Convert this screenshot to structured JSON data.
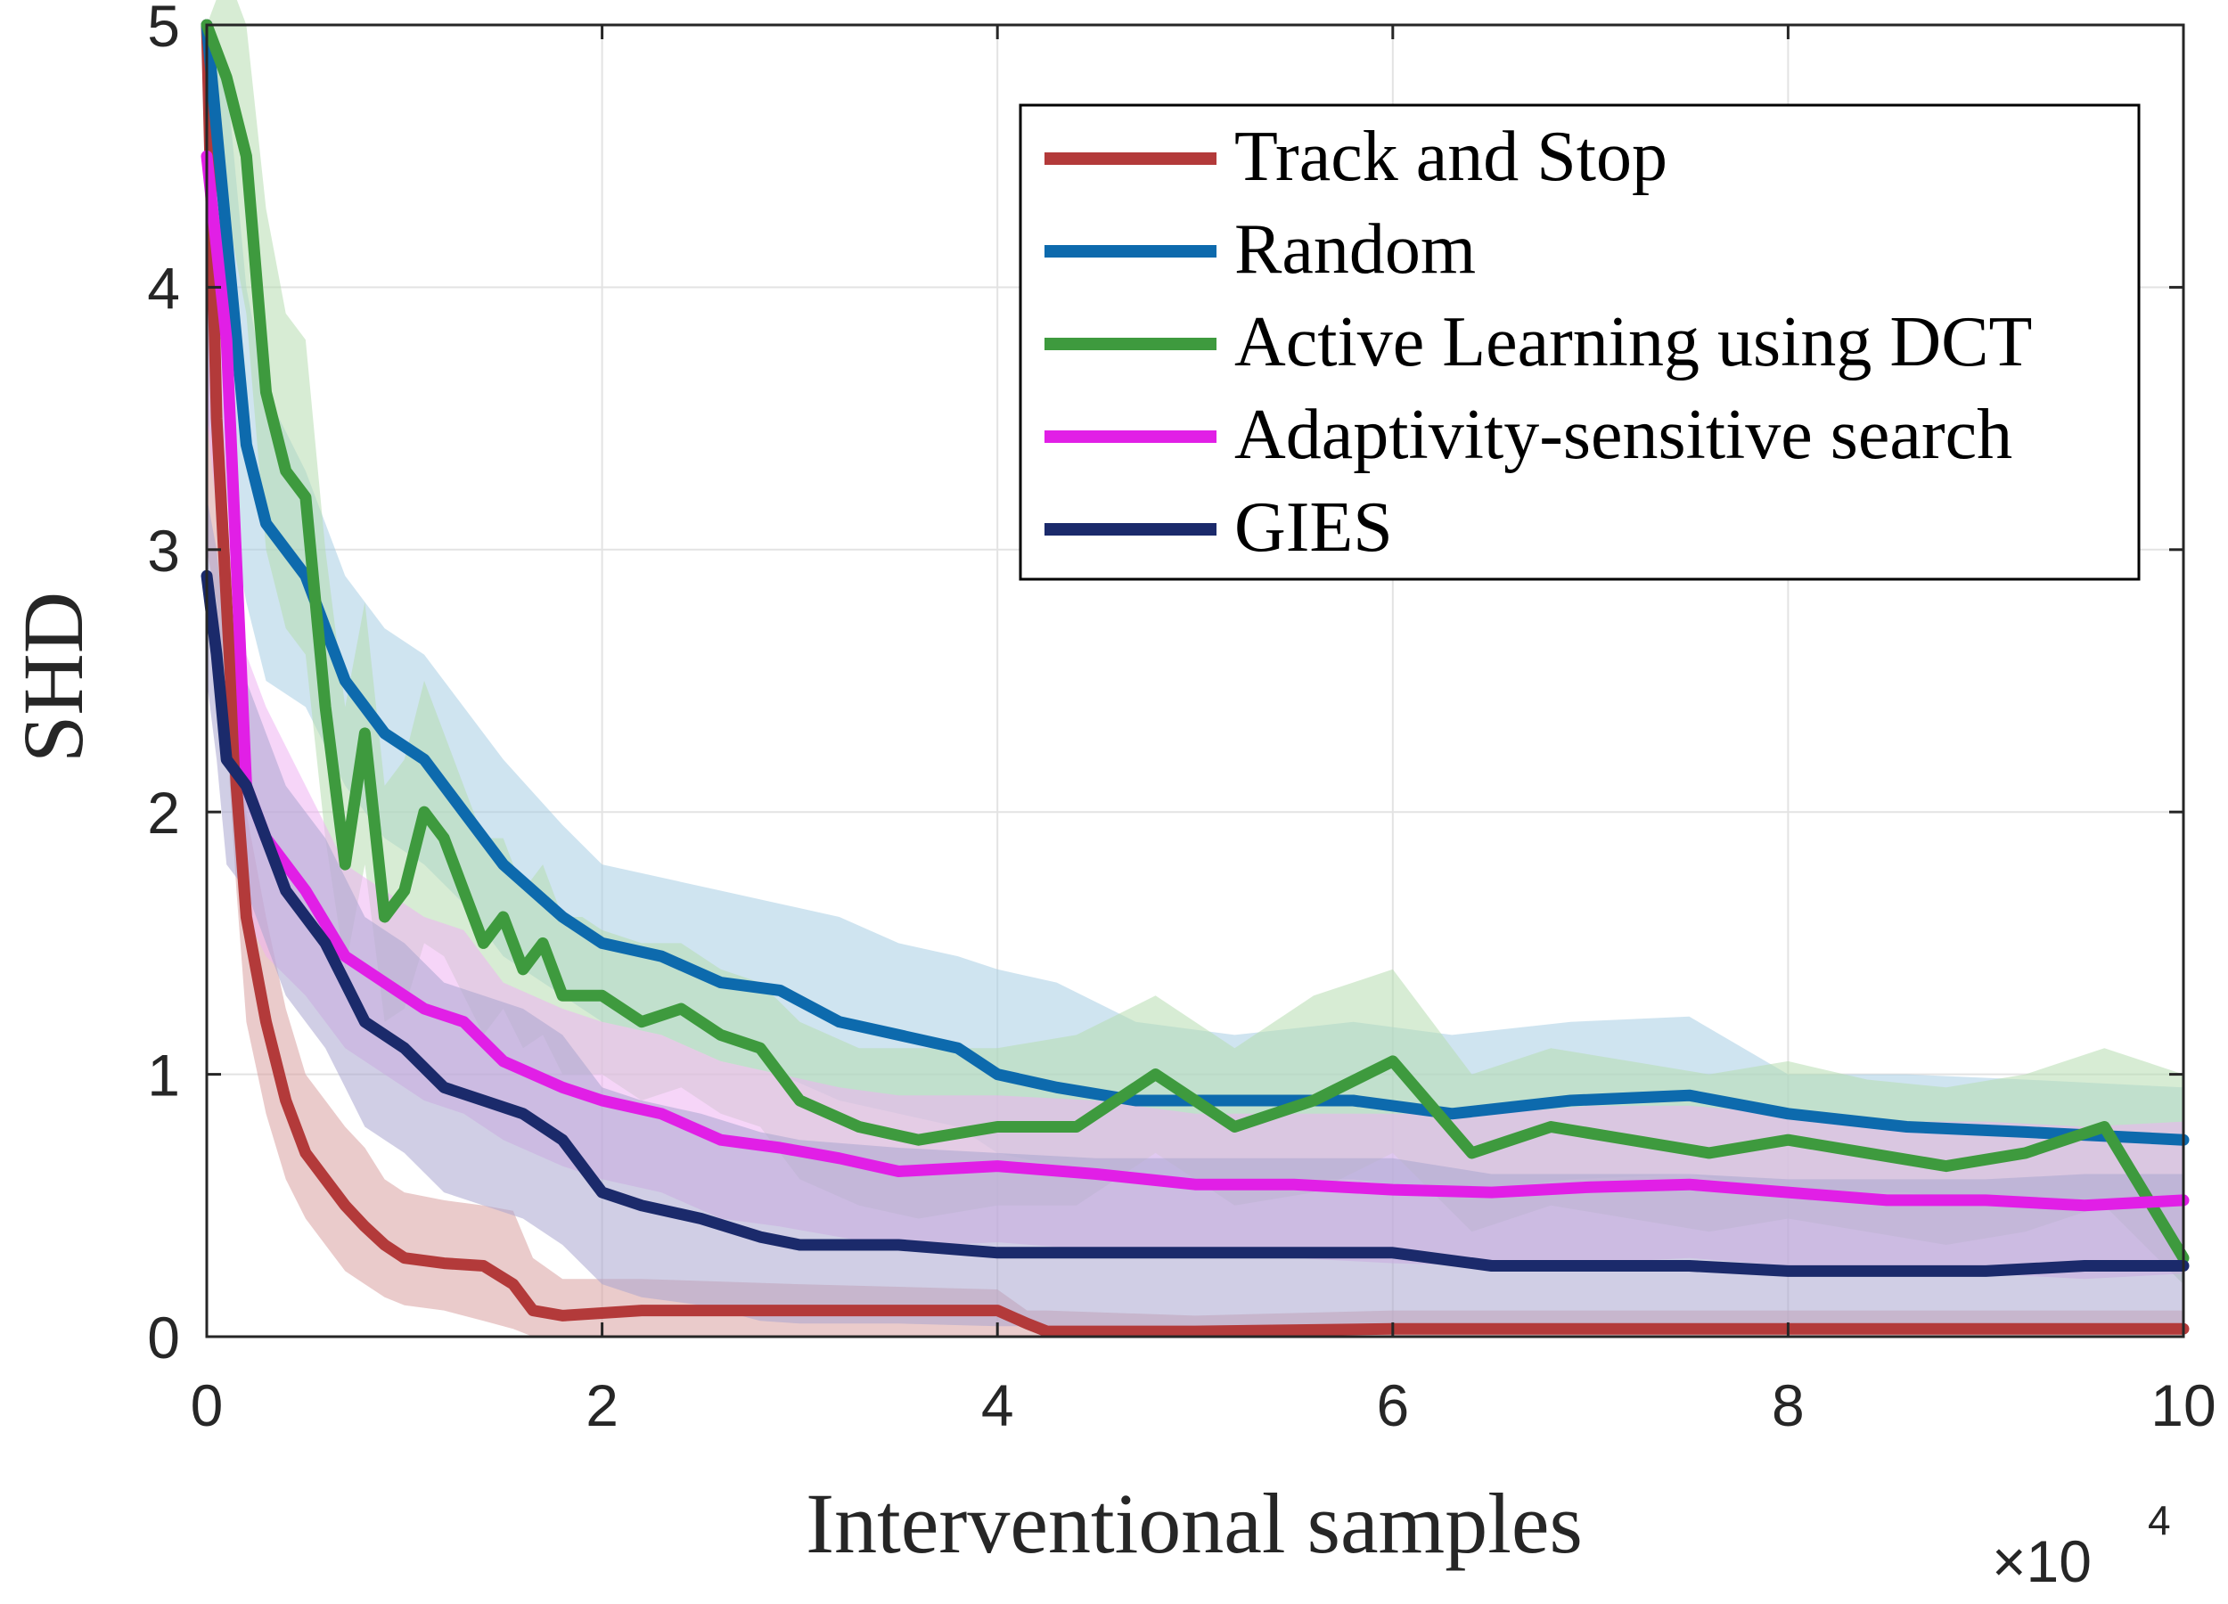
{
  "chart_data": {
    "type": "line",
    "title": "",
    "xlabel": "Interventional samples",
    "ylabel": "SHD",
    "x_exponent_base": "×10",
    "x_exponent_power": "4",
    "xlim": [
      0,
      10
    ],
    "ylim": [
      0,
      5
    ],
    "xticks": [
      "0",
      "2",
      "4",
      "6",
      "8",
      "10"
    ],
    "yticks": [
      "0",
      "1",
      "2",
      "3",
      "4",
      "5"
    ],
    "grid": true,
    "legend_position": "top-right",
    "series": [
      {
        "name": "Track and Stop",
        "color": "#b33a3a",
        "band_color": "#d9a0a0",
        "x": [
          0,
          0.05,
          0.1,
          0.15,
          0.2,
          0.3,
          0.4,
          0.5,
          0.6,
          0.7,
          0.8,
          0.9,
          1.0,
          1.2,
          1.4,
          1.55,
          1.65,
          1.8,
          2.2,
          3.0,
          4.0,
          4.15,
          4.25,
          5.0,
          6.0,
          8.0,
          10.0
        ],
        "y": [
          5,
          3.5,
          2.8,
          2.1,
          1.6,
          1.2,
          0.9,
          0.7,
          0.6,
          0.5,
          0.42,
          0.35,
          0.3,
          0.28,
          0.27,
          0.2,
          0.1,
          0.08,
          0.1,
          0.1,
          0.1,
          0.05,
          0.02,
          0.02,
          0.03,
          0.03,
          0.03
        ],
        "upper": [
          5,
          4.0,
          3.2,
          2.5,
          2.0,
          1.6,
          1.25,
          1.0,
          0.9,
          0.8,
          0.72,
          0.6,
          0.55,
          0.52,
          0.5,
          0.48,
          0.3,
          0.22,
          0.22,
          0.2,
          0.18,
          0.1,
          0.1,
          0.08,
          0.1,
          0.1,
          0.1
        ],
        "lower": [
          3,
          2.8,
          2.3,
          1.7,
          1.2,
          0.85,
          0.6,
          0.45,
          0.35,
          0.25,
          0.2,
          0.15,
          0.12,
          0.1,
          0.06,
          0.03,
          0.0,
          0.0,
          0.0,
          0.0,
          0.0,
          0.0,
          0.0,
          0.0,
          0.0,
          0.0,
          0.0
        ]
      },
      {
        "name": "Random",
        "color": "#0d6aad",
        "band_color": "#a7cde3",
        "x": [
          0,
          0.1,
          0.2,
          0.3,
          0.5,
          0.7,
          0.9,
          1.1,
          1.3,
          1.5,
          1.8,
          2.0,
          2.3,
          2.6,
          2.9,
          3.2,
          3.5,
          3.8,
          4.0,
          4.3,
          4.7,
          5.2,
          5.8,
          6.3,
          6.9,
          7.5,
          8.0,
          8.6,
          9.2,
          10.0
        ],
        "y": [
          5,
          4.2,
          3.4,
          3.1,
          2.9,
          2.5,
          2.3,
          2.2,
          2.0,
          1.8,
          1.6,
          1.5,
          1.45,
          1.35,
          1.32,
          1.2,
          1.15,
          1.1,
          1.0,
          0.95,
          0.9,
          0.9,
          0.9,
          0.85,
          0.9,
          0.92,
          0.85,
          0.8,
          0.78,
          0.75
        ],
        "upper": [
          5,
          4.8,
          4.0,
          3.6,
          3.3,
          2.9,
          2.7,
          2.6,
          2.4,
          2.2,
          1.95,
          1.8,
          1.75,
          1.7,
          1.65,
          1.6,
          1.5,
          1.45,
          1.4,
          1.35,
          1.2,
          1.15,
          1.2,
          1.15,
          1.2,
          1.22,
          1.0,
          1.0,
          0.98,
          0.95
        ],
        "lower": [
          3.5,
          3.2,
          2.8,
          2.5,
          2.4,
          2.1,
          1.9,
          1.8,
          1.65,
          1.45,
          1.3,
          1.2,
          1.15,
          1.05,
          1.0,
          0.9,
          0.85,
          0.8,
          0.7,
          0.65,
          0.6,
          0.6,
          0.6,
          0.55,
          0.6,
          0.62,
          0.55,
          0.55,
          0.5,
          0.5
        ]
      },
      {
        "name": "Active Learning using DCT",
        "color": "#3e9a3e",
        "band_color": "#b6dcb0",
        "x": [
          0,
          0.1,
          0.2,
          0.3,
          0.4,
          0.5,
          0.6,
          0.7,
          0.8,
          0.9,
          1.0,
          1.1,
          1.2,
          1.3,
          1.4,
          1.5,
          1.6,
          1.7,
          1.8,
          1.9,
          2.0,
          2.2,
          2.4,
          2.6,
          2.8,
          3.0,
          3.3,
          3.6,
          4.0,
          4.4,
          4.8,
          5.2,
          5.6,
          6.0,
          6.4,
          6.8,
          7.2,
          7.6,
          8.0,
          8.4,
          8.8,
          9.2,
          9.6,
          10.0
        ],
        "y": [
          5,
          4.8,
          4.5,
          3.6,
          3.3,
          3.2,
          2.4,
          1.8,
          2.3,
          1.6,
          1.7,
          2.0,
          1.9,
          1.7,
          1.5,
          1.6,
          1.4,
          1.5,
          1.3,
          1.3,
          1.3,
          1.2,
          1.25,
          1.15,
          1.1,
          0.9,
          0.8,
          0.75,
          0.8,
          0.8,
          1.0,
          0.8,
          0.9,
          1.05,
          0.7,
          0.8,
          0.75,
          0.7,
          0.75,
          0.7,
          0.65,
          0.7,
          0.8,
          0.3
        ],
        "upper": [
          5,
          5.2,
          5.0,
          4.3,
          3.9,
          3.8,
          3.0,
          2.4,
          2.8,
          2.1,
          2.2,
          2.5,
          2.3,
          2.1,
          1.9,
          1.9,
          1.7,
          1.8,
          1.6,
          1.6,
          1.55,
          1.5,
          1.5,
          1.4,
          1.35,
          1.2,
          1.1,
          1.1,
          1.1,
          1.15,
          1.3,
          1.1,
          1.3,
          1.4,
          1.0,
          1.1,
          1.05,
          1.0,
          1.05,
          0.98,
          0.95,
          1.0,
          1.1,
          1.0
        ],
        "lower": [
          4.5,
          4.3,
          3.9,
          3.0,
          2.7,
          2.6,
          1.9,
          1.4,
          1.8,
          1.2,
          1.25,
          1.5,
          1.45,
          1.3,
          1.15,
          1.25,
          1.1,
          1.15,
          1.0,
          1.0,
          1.0,
          0.9,
          0.95,
          0.85,
          0.8,
          0.6,
          0.5,
          0.45,
          0.5,
          0.5,
          0.7,
          0.5,
          0.55,
          0.7,
          0.4,
          0.5,
          0.45,
          0.4,
          0.45,
          0.4,
          0.35,
          0.4,
          0.5,
          0.2
        ]
      },
      {
        "name": "Adaptivity-sensitive search",
        "color": "#e11fe6",
        "band_color": "#efb3f2",
        "x": [
          0,
          0.1,
          0.2,
          0.3,
          0.5,
          0.7,
          0.9,
          1.1,
          1.3,
          1.5,
          1.8,
          2.0,
          2.3,
          2.6,
          2.9,
          3.2,
          3.5,
          4.0,
          4.5,
          5.0,
          5.5,
          6.0,
          6.5,
          7.0,
          7.5,
          8.0,
          8.5,
          9.0,
          9.5,
          10.0
        ],
        "y": [
          4.5,
          3.8,
          2.1,
          1.9,
          1.7,
          1.45,
          1.35,
          1.25,
          1.2,
          1.05,
          0.95,
          0.9,
          0.85,
          0.75,
          0.72,
          0.68,
          0.63,
          0.65,
          0.62,
          0.58,
          0.58,
          0.56,
          0.55,
          0.57,
          0.58,
          0.55,
          0.52,
          0.52,
          0.5,
          0.52
        ],
        "upper": [
          4.5,
          4.2,
          2.6,
          2.4,
          2.1,
          1.8,
          1.7,
          1.6,
          1.55,
          1.35,
          1.25,
          1.2,
          1.15,
          1.05,
          1.0,
          0.95,
          0.92,
          0.92,
          0.9,
          0.85,
          0.85,
          0.85,
          0.85,
          0.88,
          0.88,
          0.85,
          0.82,
          0.82,
          0.8,
          0.82
        ],
        "lower": [
          3.5,
          2.8,
          1.6,
          1.45,
          1.3,
          1.1,
          1.0,
          0.9,
          0.85,
          0.75,
          0.65,
          0.6,
          0.55,
          0.45,
          0.42,
          0.38,
          0.34,
          0.36,
          0.33,
          0.3,
          0.3,
          0.28,
          0.27,
          0.28,
          0.3,
          0.27,
          0.24,
          0.24,
          0.22,
          0.24
        ]
      },
      {
        "name": "GIES",
        "color": "#1b2a6b",
        "band_color": "#a9a6cf",
        "x": [
          0,
          0.05,
          0.1,
          0.2,
          0.3,
          0.4,
          0.5,
          0.6,
          0.7,
          0.8,
          0.9,
          1.0,
          1.2,
          1.4,
          1.6,
          1.8,
          2.0,
          2.2,
          2.5,
          2.8,
          3.0,
          3.5,
          4.0,
          4.5,
          5.0,
          5.5,
          6.0,
          6.5,
          7.0,
          7.5,
          8.0,
          8.5,
          9.0,
          9.5,
          10.0
        ],
        "y": [
          2.9,
          2.6,
          2.2,
          2.1,
          1.9,
          1.7,
          1.6,
          1.5,
          1.35,
          1.2,
          1.15,
          1.1,
          0.95,
          0.9,
          0.85,
          0.75,
          0.55,
          0.5,
          0.45,
          0.38,
          0.35,
          0.35,
          0.32,
          0.32,
          0.32,
          0.32,
          0.32,
          0.27,
          0.27,
          0.27,
          0.25,
          0.25,
          0.25,
          0.27,
          0.27
        ],
        "upper": [
          3.2,
          3.0,
          2.6,
          2.5,
          2.3,
          2.1,
          2.0,
          1.9,
          1.75,
          1.6,
          1.55,
          1.5,
          1.35,
          1.3,
          1.25,
          1.15,
          0.95,
          0.9,
          0.85,
          0.78,
          0.75,
          0.72,
          0.7,
          0.68,
          0.68,
          0.68,
          0.68,
          0.62,
          0.62,
          0.62,
          0.6,
          0.6,
          0.6,
          0.62,
          0.62
        ],
        "lower": [
          2.5,
          2.2,
          1.8,
          1.7,
          1.5,
          1.3,
          1.2,
          1.1,
          0.95,
          0.8,
          0.75,
          0.7,
          0.55,
          0.5,
          0.45,
          0.35,
          0.2,
          0.15,
          0.12,
          0.06,
          0.05,
          0.05,
          0.04,
          0.04,
          0.04,
          0.04,
          0.04,
          0.03,
          0.03,
          0.03,
          0.02,
          0.02,
          0.02,
          0.03,
          0.03
        ]
      }
    ]
  }
}
